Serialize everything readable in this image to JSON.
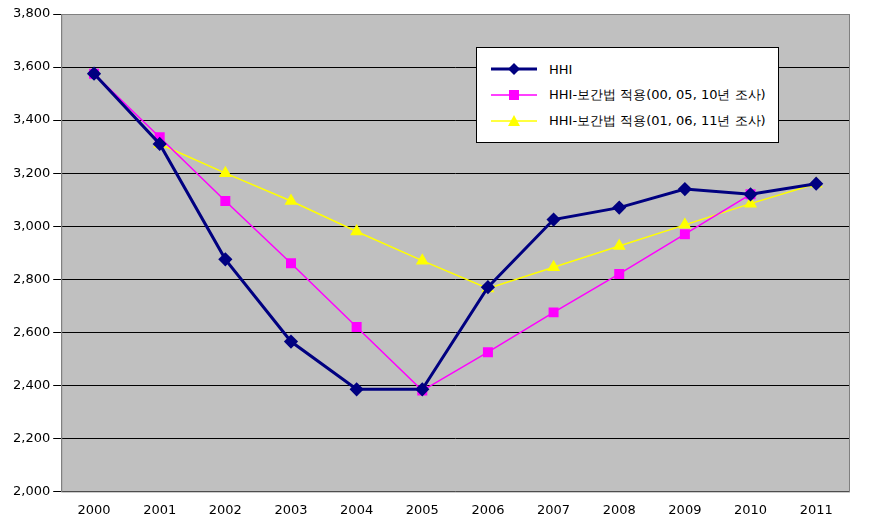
{
  "chart_data": {
    "type": "line",
    "categories": [
      "2000",
      "2001",
      "2002",
      "2003",
      "2004",
      "2005",
      "2006",
      "2007",
      "2008",
      "2009",
      "2010",
      "2011"
    ],
    "series": [
      {
        "name": "HHI",
        "color": "#000080",
        "marker": "diamond",
        "values": [
          3575,
          3310,
          2875,
          2565,
          2385,
          2385,
          2770,
          3025,
          3070,
          3140,
          3120,
          3160
        ]
      },
      {
        "name": "HHI-보간법 적용(00, 05, 10년 조사)",
        "color": "#ff00ff",
        "marker": "square",
        "values": [
          3575,
          3335,
          3095,
          2860,
          2620,
          2380,
          2525,
          2675,
          2820,
          2970,
          3120,
          null
        ]
      },
      {
        "name": "HHI-보간법 적용(01, 06, 11년 조사)",
        "color": "#ffff00",
        "marker": "triangle",
        "values": [
          null,
          3310,
          3200,
          3095,
          2980,
          2870,
          2765,
          2845,
          2925,
          3005,
          3085,
          3160
        ]
      }
    ],
    "ylim": [
      2000,
      3800
    ],
    "yticks": [
      {
        "value": 2000,
        "label": "2,000"
      },
      {
        "value": 2200,
        "label": "2,200"
      },
      {
        "value": 2400,
        "label": "2,400"
      },
      {
        "value": 2600,
        "label": "2,600"
      },
      {
        "value": 2800,
        "label": "2,800"
      },
      {
        "value": 3000,
        "label": "3,000"
      },
      {
        "value": 3200,
        "label": "3,200"
      },
      {
        "value": 3400,
        "label": "3,400"
      },
      {
        "value": 3600,
        "label": "3,600"
      },
      {
        "value": 3800,
        "label": "3,800"
      }
    ],
    "grid": true,
    "legend": "upper right"
  }
}
